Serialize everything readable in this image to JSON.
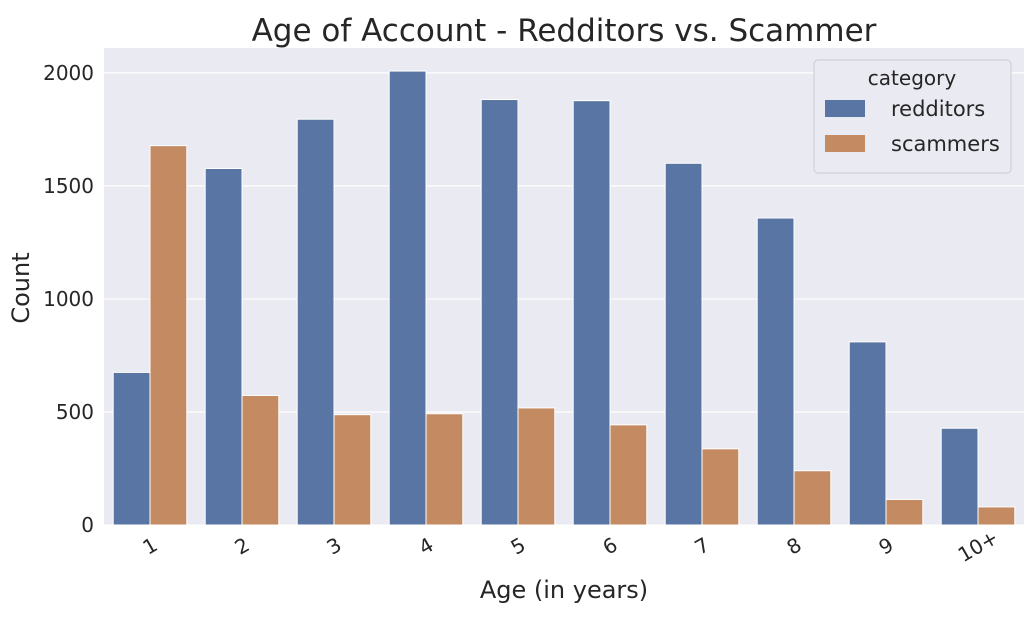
{
  "chart_data": {
    "type": "bar",
    "title": "Age of Account - Redditors vs. Scammer",
    "xlabel": "Age (in years)",
    "ylabel": "Count",
    "categories": [
      "1",
      "2",
      "3",
      "4",
      "5",
      "6",
      "7",
      "8",
      "9",
      "10+"
    ],
    "series": [
      {
        "name": "redditors",
        "color": "#5975a4",
        "values": [
          675,
          1577,
          1795,
          2008,
          1882,
          1877,
          1600,
          1358,
          810,
          428
        ]
      },
      {
        "name": "scammers",
        "color": "#c48b63",
        "values": [
          1678,
          573,
          488,
          492,
          518,
          443,
          337,
          240,
          113,
          80
        ]
      }
    ],
    "yticks": [
      0,
      500,
      1000,
      1500,
      2000
    ],
    "ylim": [
      0,
      2110
    ],
    "grid": true,
    "background_color": "#eaeaf2",
    "legend": {
      "title": "category",
      "placement": "top-right"
    },
    "x_tick_rotation": -30
  }
}
